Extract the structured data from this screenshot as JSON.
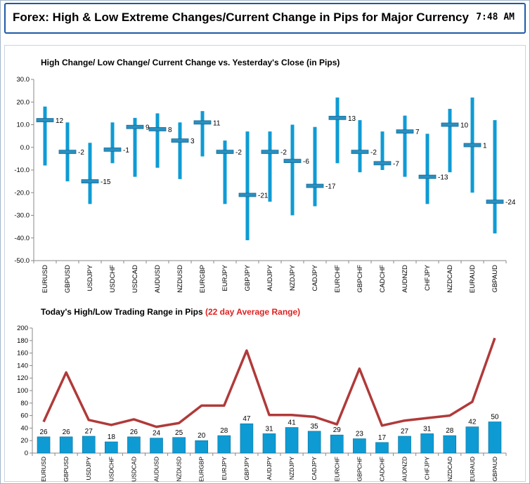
{
  "header": {
    "title": "Forex:  High & Low Extreme Changes/Current Change in Pips for Major Currency",
    "time": "7:48 AM"
  },
  "chart_data": [
    {
      "type": "bar",
      "title": "High Change/ Low Change/ Current Change vs. Yesterday's Close (in Pips)",
      "categories": [
        "EURUSD",
        "GBPUSD",
        "USDJPY",
        "USDCHF",
        "USDCAD",
        "AUDUSD",
        "NZDUSD",
        "EURGBP",
        "EURJPY",
        "GBPJPY",
        "AUDJPY",
        "NZDJPY",
        "CADJPY",
        "EURCHF",
        "GBPCHF",
        "CADCHF",
        "AUDNZD",
        "CHFJPY",
        "NZDCAD",
        "EURAUD",
        "GBPAUD"
      ],
      "high": [
        18,
        11,
        2,
        11,
        13,
        15,
        11,
        16,
        3,
        7,
        7,
        10,
        9,
        22,
        12,
        7,
        14,
        6,
        17,
        22,
        12
      ],
      "low": [
        -8,
        -15,
        -25,
        -7,
        -13,
        -9,
        -14,
        -4,
        -25,
        -41,
        -24,
        -30,
        -26,
        -7,
        -11,
        -10,
        -13,
        -25,
        -11,
        -20,
        -38
      ],
      "current": [
        12,
        -2,
        -15,
        -1,
        9,
        8,
        3,
        11,
        -2,
        -21,
        -2,
        -6,
        -17,
        13,
        -2,
        -7,
        7,
        -13,
        10,
        1,
        -24
      ],
      "ylim": [
        -50,
        30
      ],
      "yticks": [
        "30.0",
        "20.0",
        "10.0",
        "0.0",
        "-10.0",
        "-20.0",
        "-30.0",
        "-40.0",
        "-50.0"
      ],
      "colors": {
        "range": "#0e9bd4",
        "marker": "#2a8fc0"
      }
    },
    {
      "type": "bar",
      "title": "Today's High/Low Trading Range in Pips",
      "title_highlight": "(22 day Average Range)",
      "categories": [
        "EURUSD",
        "GBPUSD",
        "USDJPY",
        "USDCHF",
        "USDCAD",
        "AUDUSD",
        "NZDUSD",
        "EURGBP",
        "EURJPY",
        "GBPJPY",
        "AUDJPY",
        "NZDJPY",
        "CADJPY",
        "EURCHF",
        "GBPCHF",
        "CADCHF",
        "AUDNZD",
        "CHFJPY",
        "NZDCAD",
        "EURAUD",
        "GBPAUD"
      ],
      "series": [
        {
          "values": [
            26,
            26,
            27,
            18,
            26,
            24,
            25,
            20,
            28,
            47,
            31,
            41,
            35,
            29,
            23,
            17,
            27,
            31,
            28,
            42,
            50
          ]
        },
        {
          "values": [
            50,
            129,
            53,
            45,
            54,
            42,
            48,
            76,
            76,
            164,
            61,
            61,
            58,
            46,
            135,
            44,
            52,
            56,
            60,
            82,
            184
          ]
        }
      ],
      "ylim": [
        0,
        200
      ],
      "yticks": [
        "0",
        "20",
        "40",
        "60",
        "80",
        "100",
        "120",
        "140",
        "160",
        "180",
        "200"
      ],
      "colors": {
        "bar": "#0e9bd4",
        "line": "#b03a3a",
        "highlight": "#e02020"
      }
    }
  ]
}
